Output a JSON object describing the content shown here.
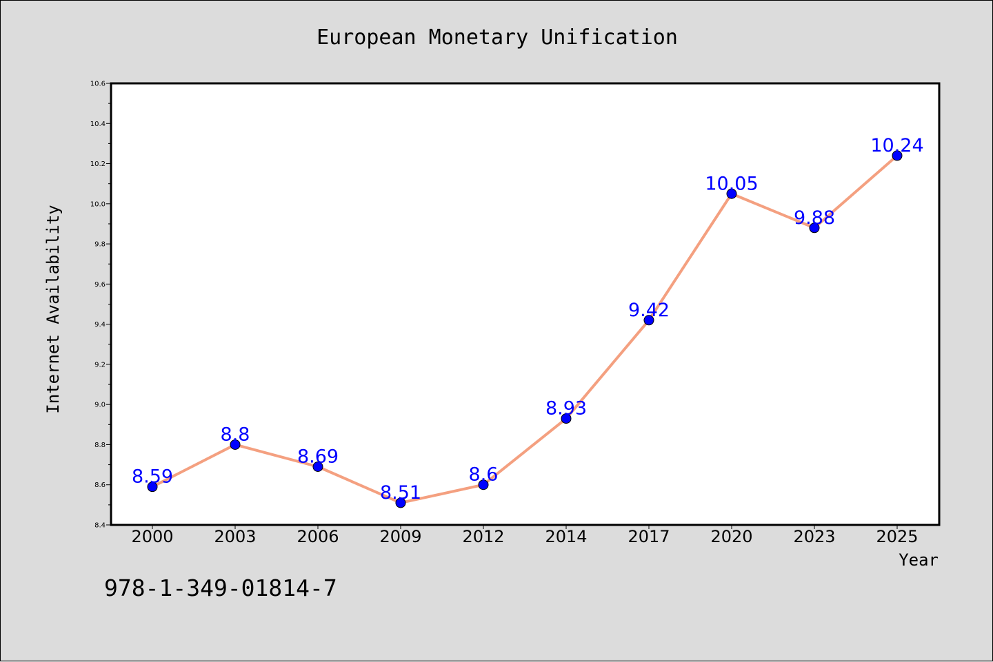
{
  "chart_data": {
    "type": "line",
    "title": "European Monetary Unification",
    "xlabel": "Year",
    "ylabel": "Internet Availability",
    "categories": [
      "2000",
      "2003",
      "2006",
      "2009",
      "2012",
      "2014",
      "2017",
      "2020",
      "2023",
      "2025"
    ],
    "series": [
      {
        "values": [
          8.59,
          8.8,
          8.69,
          8.51,
          8.6,
          8.93,
          9.42,
          10.05,
          9.88,
          10.24
        ]
      }
    ],
    "data_labels": [
      "8.59",
      "8.8",
      "8.69",
      "8.51",
      "8.6",
      "8.93",
      "9.42",
      "10.05",
      "9.88",
      "10.24"
    ],
    "ylim": [
      8.4,
      10.6
    ],
    "yticks": [
      "8.4",
      "8.6",
      "8.8",
      "9.0",
      "9.2",
      "9.4",
      "9.6",
      "9.8",
      "10.0",
      "10.2",
      "10.4",
      "10.6"
    ],
    "grid": false,
    "line_color": "#f4a080",
    "marker_color": "#0000ff",
    "label_color": "#0000ff"
  },
  "footer": {
    "code": "978-1-349-01814-7"
  }
}
